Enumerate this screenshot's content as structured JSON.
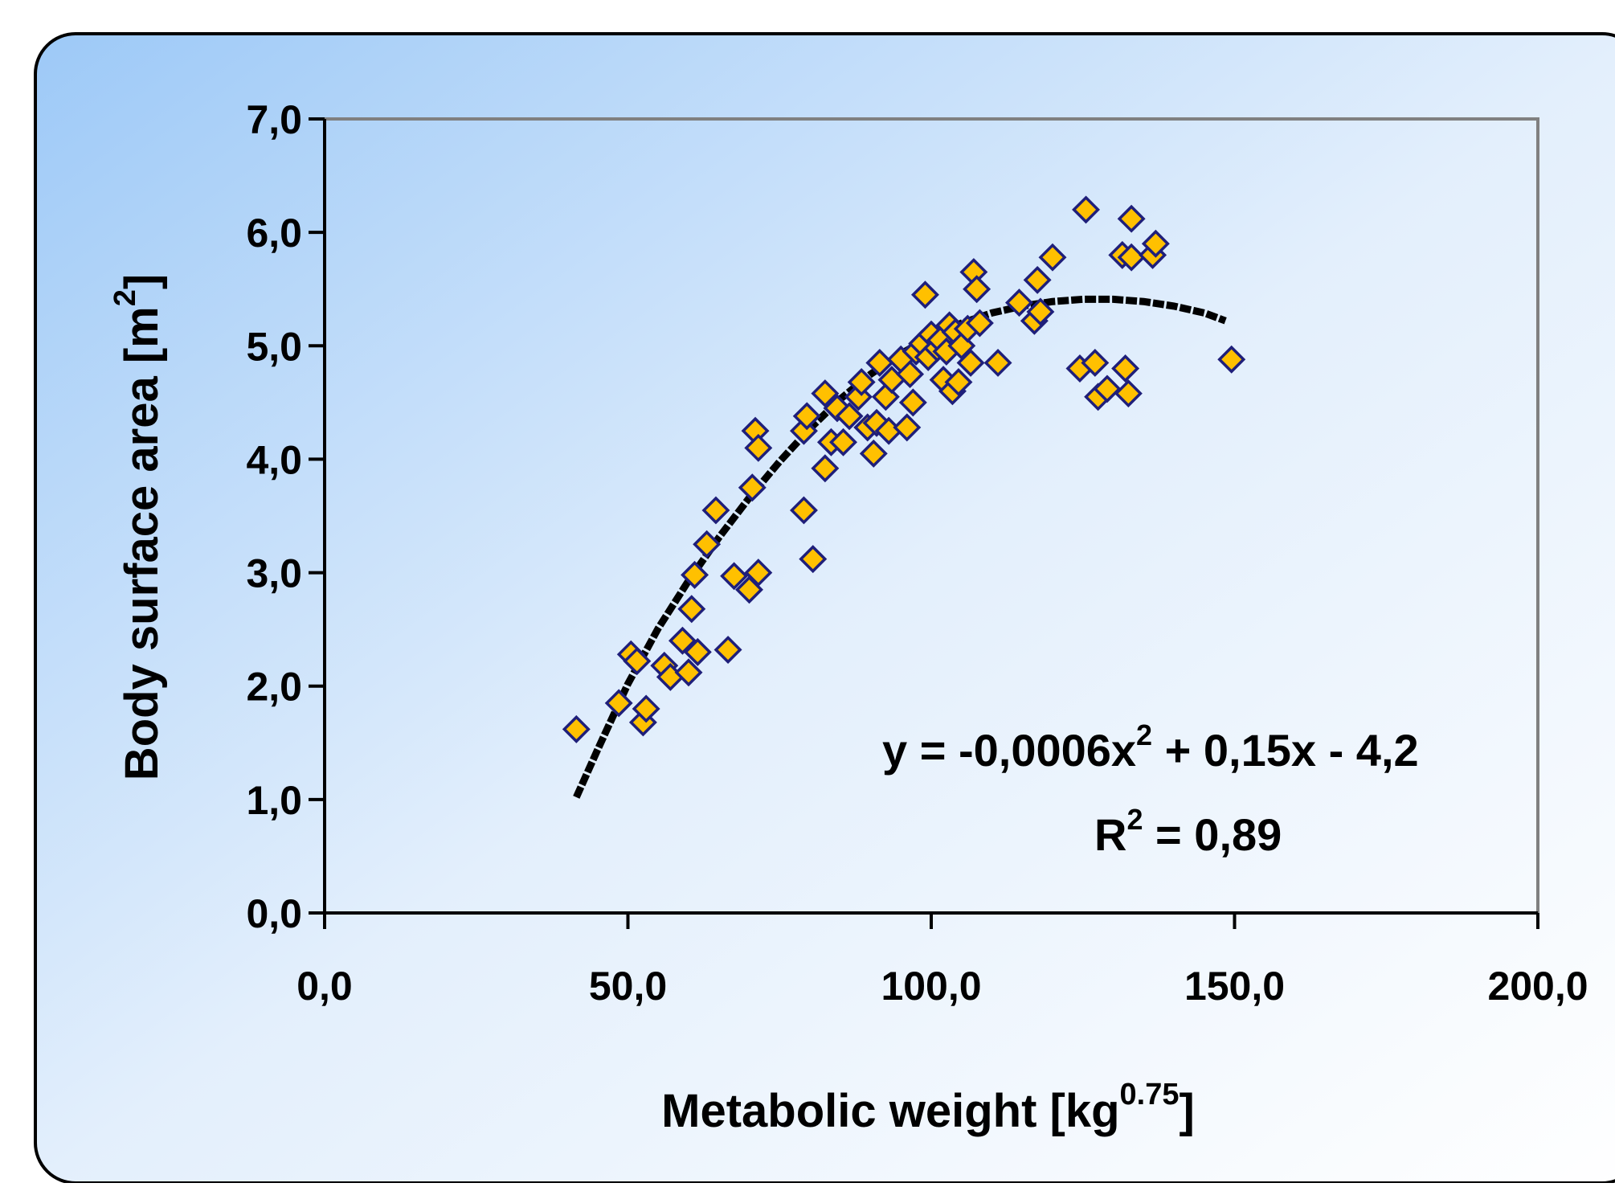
{
  "chart_data": {
    "type": "scatter",
    "title": "",
    "xlabel": {
      "main": "Metabolic weight [kg",
      "sup": "0.75",
      "tail": "]"
    },
    "ylabel": {
      "main": "Body surface area [m",
      "sup": "2",
      "tail": "]"
    },
    "xlim": [
      0,
      200
    ],
    "ylim": [
      0,
      7
    ],
    "x_ticks": [
      "0,0",
      "50,0",
      "100,0",
      "150,0",
      "200,0"
    ],
    "y_ticks": [
      "0,0",
      "1,0",
      "2,0",
      "3,0",
      "4,0",
      "5,0",
      "6,0",
      "7,0"
    ],
    "grid": false,
    "legend": "none",
    "marker_fill": "#FFC000",
    "marker_stroke": "#1F1F7A",
    "trendline_color": "#000000",
    "plot_border_color": "#808080",
    "background_top_left": "#9DC9F7",
    "background_bottom_right": "#FFFFFF",
    "series": [
      {
        "type": "scatter",
        "points": [
          [
            41.5,
            1.62
          ],
          [
            48.5,
            1.85
          ],
          [
            50.5,
            2.28
          ],
          [
            51.5,
            2.22
          ],
          [
            52.5,
            1.68
          ],
          [
            53,
            1.8
          ],
          [
            56,
            2.18
          ],
          [
            57,
            2.08
          ],
          [
            59,
            2.4
          ],
          [
            60,
            2.12
          ],
          [
            60.5,
            2.68
          ],
          [
            61.5,
            2.3
          ],
          [
            61,
            2.98
          ],
          [
            63,
            3.25
          ],
          [
            64.5,
            3.55
          ],
          [
            66.5,
            2.32
          ],
          [
            67.5,
            2.97
          ],
          [
            70,
            2.85
          ],
          [
            70.5,
            3.75
          ],
          [
            71,
            4.25
          ],
          [
            71.5,
            3.0
          ],
          [
            71.5,
            4.1
          ],
          [
            79,
            3.55
          ],
          [
            79,
            4.25
          ],
          [
            79.5,
            4.38
          ],
          [
            80.5,
            3.12
          ],
          [
            82.5,
            4.58
          ],
          [
            82.5,
            3.92
          ],
          [
            83.5,
            4.15
          ],
          [
            84.5,
            4.45
          ],
          [
            85.5,
            4.15
          ],
          [
            86.5,
            4.38
          ],
          [
            88,
            4.55
          ],
          [
            88.5,
            4.68
          ],
          [
            89.5,
            4.28
          ],
          [
            90.5,
            4.05
          ],
          [
            91,
            4.32
          ],
          [
            91.5,
            4.85
          ],
          [
            92.5,
            4.55
          ],
          [
            93,
            4.25
          ],
          [
            93.5,
            4.7
          ],
          [
            95,
            4.88
          ],
          [
            96,
            4.28
          ],
          [
            96.5,
            4.75
          ],
          [
            97,
            4.5
          ],
          [
            97.5,
            4.95
          ],
          [
            98.5,
            5.02
          ],
          [
            99,
            5.45
          ],
          [
            99.5,
            4.9
          ],
          [
            100,
            5.1
          ],
          [
            101,
            4.98
          ],
          [
            101.5,
            5.05
          ],
          [
            102,
            4.7
          ],
          [
            102.5,
            4.95
          ],
          [
            103,
            5.18
          ],
          [
            103.5,
            4.6
          ],
          [
            104,
            5.12
          ],
          [
            104.5,
            4.68
          ],
          [
            105,
            5.0
          ],
          [
            106,
            5.15
          ],
          [
            106.5,
            4.85
          ],
          [
            107,
            5.65
          ],
          [
            107.5,
            5.5
          ],
          [
            108,
            5.2
          ],
          [
            111,
            4.85
          ],
          [
            114.5,
            5.38
          ],
          [
            117,
            5.22
          ],
          [
            117.5,
            5.58
          ],
          [
            118,
            5.3
          ],
          [
            120,
            5.78
          ],
          [
            124.5,
            4.8
          ],
          [
            125.5,
            6.2
          ],
          [
            127,
            4.85
          ],
          [
            127.5,
            4.55
          ],
          [
            129,
            4.62
          ],
          [
            131.5,
            5.8
          ],
          [
            132,
            4.8
          ],
          [
            132.5,
            4.58
          ],
          [
            133,
            5.78
          ],
          [
            133,
            6.12
          ],
          [
            136.5,
            5.8
          ],
          [
            137,
            5.9
          ],
          [
            149.5,
            4.88
          ]
        ]
      },
      {
        "type": "line",
        "name": "Poly. trendline",
        "x": [
          41.5,
          45,
          50,
          55,
          60,
          65,
          70,
          75,
          80,
          85,
          90,
          95,
          100,
          105,
          110,
          115,
          120,
          125,
          130,
          135,
          140,
          145,
          148.5
        ],
        "y": [
          1.02,
          1.44,
          2.02,
          2.51,
          2.93,
          3.31,
          3.66,
          3.98,
          4.27,
          4.53,
          4.75,
          4.93,
          5.08,
          5.2,
          5.29,
          5.35,
          5.39,
          5.41,
          5.41,
          5.39,
          5.35,
          5.29,
          5.22
        ]
      }
    ],
    "annotations": [
      {
        "label": "equation",
        "parts": [
          "y = -0,0006x",
          "2",
          " + 0,15x - 4,2"
        ]
      },
      {
        "label": "r_squared",
        "parts": [
          "R",
          "2",
          " = 0,89"
        ]
      }
    ]
  }
}
